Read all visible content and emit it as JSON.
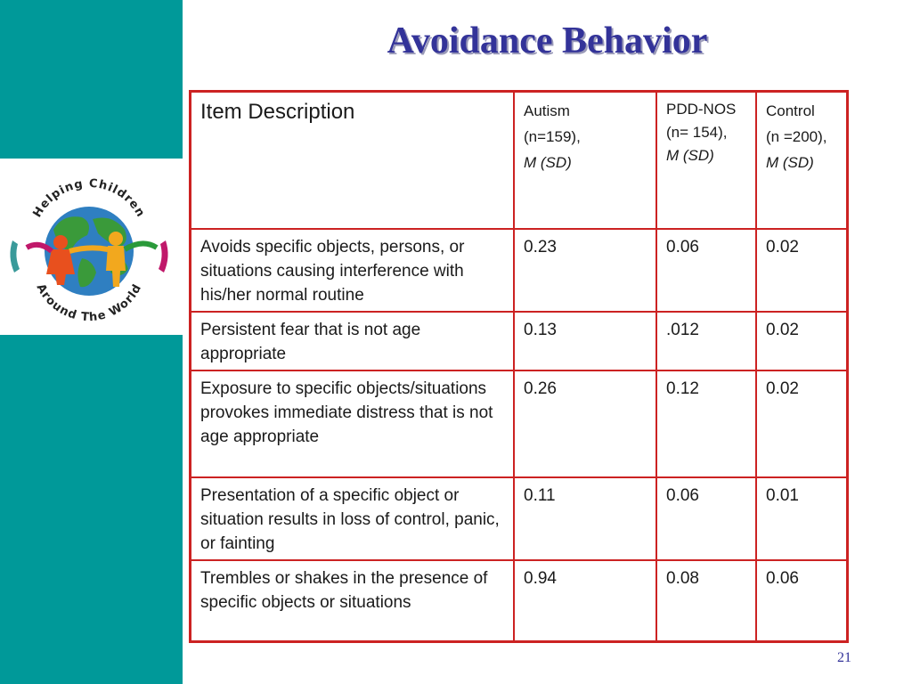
{
  "slide": {
    "title": "Avoidance Behavior",
    "page_number": "21"
  },
  "logo": {
    "top_text": "Helping Children",
    "bottom_text": "Around The World"
  },
  "table": {
    "header": {
      "item": "Item Description",
      "autism": [
        "Autism",
        "(n=159),",
        "M (SD)"
      ],
      "pdd": [
        "PDD-NOS (n= 154),",
        "M (SD)"
      ],
      "control": [
        "Control",
        "(n =200),",
        "M (SD)"
      ]
    },
    "rows": [
      {
        "item": "Avoids specific objects, persons, or situations causing interference with his/her normal routine",
        "autism": "0.23",
        "pdd": "0.06",
        "control": "0.02"
      },
      {
        "item": "Persistent fear that is not age appropriate",
        "autism": "0.13",
        "pdd": ".012",
        "control": "0.02"
      },
      {
        "item": "Exposure to specific objects/situations provokes immediate distress that is not age appropriate",
        "autism": "0.26",
        "pdd": "0.12",
        "control": "0.02"
      },
      {
        "item": "Presentation of a specific object or situation results in loss of control, panic, or fainting",
        "autism": "0.11",
        "pdd": "0.06",
        "control": "0.01"
      },
      {
        "item": "Trembles or shakes in the presence of specific objects or situations",
        "autism": "0.94",
        "pdd": "0.08",
        "control": "0.06"
      }
    ]
  },
  "colors": {
    "sidebar": "#009999",
    "title": "#333399",
    "table_border": "#cc2222"
  }
}
